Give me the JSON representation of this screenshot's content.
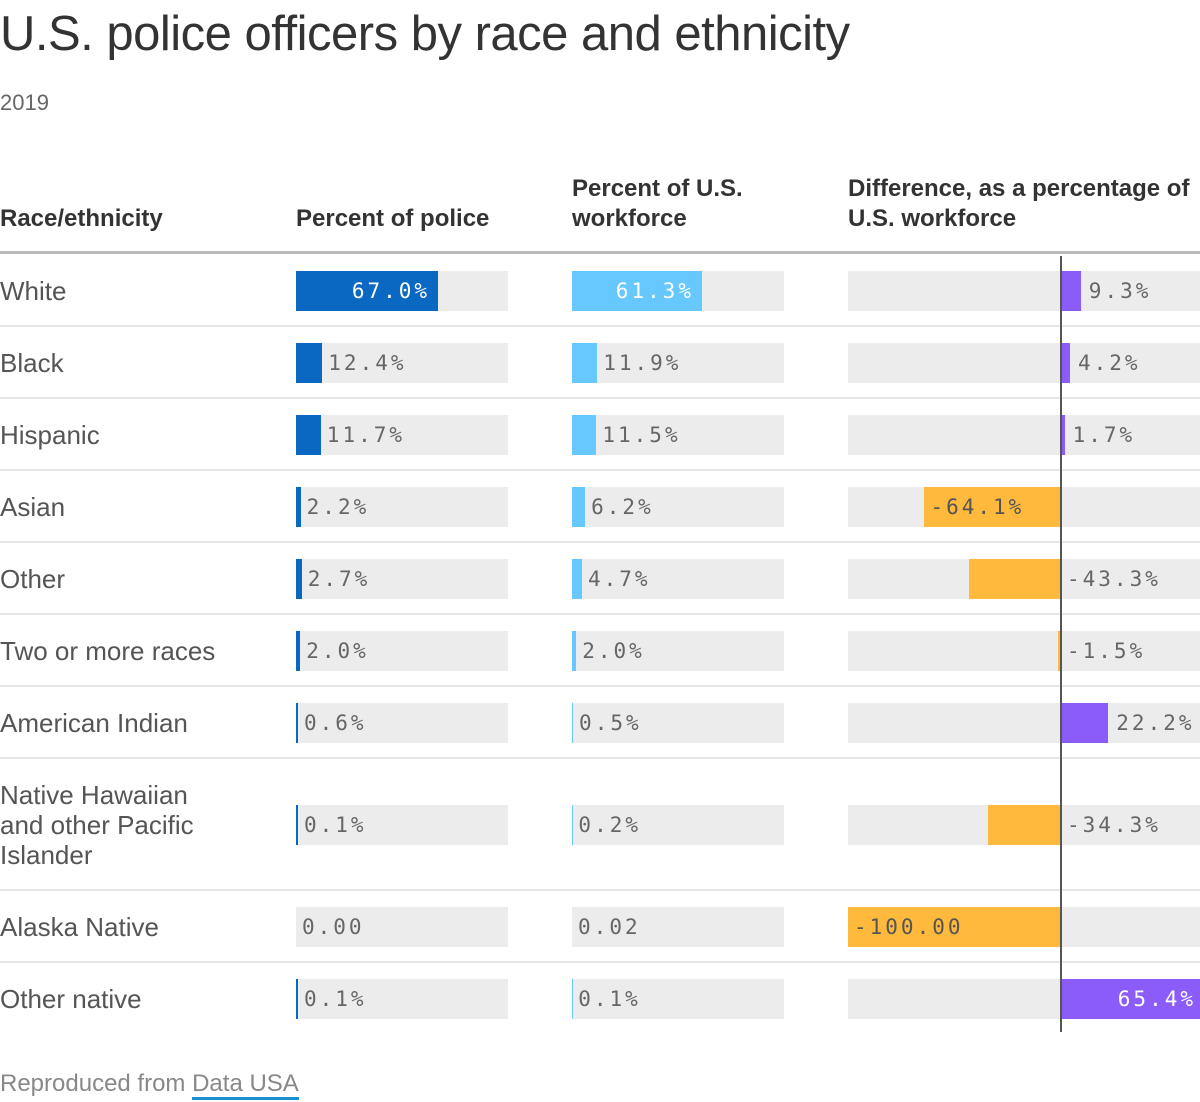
{
  "title": "U.S. police officers by race and ethnicity",
  "subtitle": "2019",
  "footer": {
    "prefix": "Reproduced from ",
    "link": "Data USA"
  },
  "colors": {
    "police": "#0a67c2",
    "workforce": "#66c8ff",
    "positive": "#8c5cfa",
    "negative": "#ffb93c",
    "track": "#ececec"
  },
  "chart_data": {
    "type": "table",
    "columns": [
      "Race/ethnicity",
      "Percent of police",
      "Percent of U.S. workforce",
      "Difference, as a percentage of U.S. workforce"
    ],
    "rows": [
      {
        "label": "White",
        "police": 67.0,
        "police_label": "67.0%",
        "workforce": 61.3,
        "workforce_label": "61.3%",
        "diff": 9.3,
        "diff_label": "9.3%"
      },
      {
        "label": "Black",
        "police": 12.4,
        "police_label": "12.4%",
        "workforce": 11.9,
        "workforce_label": "11.9%",
        "diff": 4.2,
        "diff_label": "4.2%"
      },
      {
        "label": "Hispanic",
        "police": 11.7,
        "police_label": "11.7%",
        "workforce": 11.5,
        "workforce_label": "11.5%",
        "diff": 1.7,
        "diff_label": "1.7%"
      },
      {
        "label": "Asian",
        "police": 2.2,
        "police_label": "2.2%",
        "workforce": 6.2,
        "workforce_label": "6.2%",
        "diff": -64.1,
        "diff_label": "-64.1%"
      },
      {
        "label": "Other",
        "police": 2.7,
        "police_label": "2.7%",
        "workforce": 4.7,
        "workforce_label": "4.7%",
        "diff": -43.3,
        "diff_label": "-43.3%"
      },
      {
        "label": "Two or more races",
        "police": 2.0,
        "police_label": "2.0%",
        "workforce": 2.0,
        "workforce_label": "2.0%",
        "diff": -1.5,
        "diff_label": "-1.5%"
      },
      {
        "label": "American Indian",
        "police": 0.6,
        "police_label": "0.6%",
        "workforce": 0.5,
        "workforce_label": "0.5%",
        "diff": 22.2,
        "diff_label": "22.2%"
      },
      {
        "label": "Native Hawaiian and other Pacific Islander",
        "police": 0.1,
        "police_label": "0.1%",
        "workforce": 0.2,
        "workforce_label": "0.2%",
        "diff": -34.3,
        "diff_label": "-34.3%"
      },
      {
        "label": "Alaska Native",
        "police": 0.0,
        "police_label": "0.00",
        "workforce": 0.02,
        "workforce_label": "0.02",
        "diff": -100.0,
        "diff_label": "-100.00"
      },
      {
        "label": "Other native",
        "police": 0.1,
        "police_label": "0.1%",
        "workforce": 0.1,
        "workforce_label": "0.1%",
        "diff": 65.4,
        "diff_label": "65.4%"
      }
    ]
  }
}
